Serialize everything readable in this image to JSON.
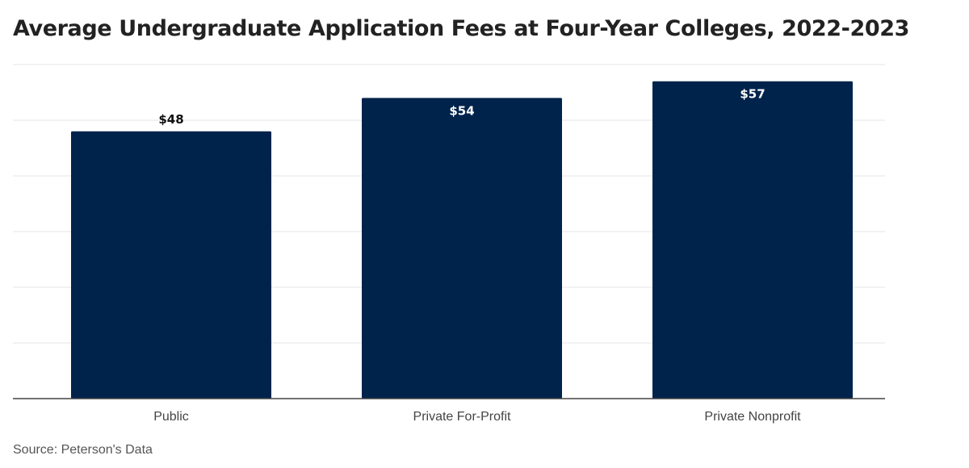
{
  "chart_data": {
    "type": "bar",
    "title": "Average Undergraduate Application Fees at Four-Year Colleges, 2022-2023",
    "categories": [
      "Public",
      "Private For-Profit",
      "Private Nonprofit"
    ],
    "values": [
      48,
      54,
      57
    ],
    "data_labels": [
      "$48",
      "$54",
      "$57"
    ],
    "ylim": [
      0,
      60
    ],
    "grid": true,
    "legend": "none",
    "source": "Source: Peterson's Data",
    "colors": {
      "bar": "#00234B",
      "grid": "#E6E6E6",
      "axis": "#444444",
      "label_dark": "#111111",
      "label_light": "#ffffff"
    }
  }
}
